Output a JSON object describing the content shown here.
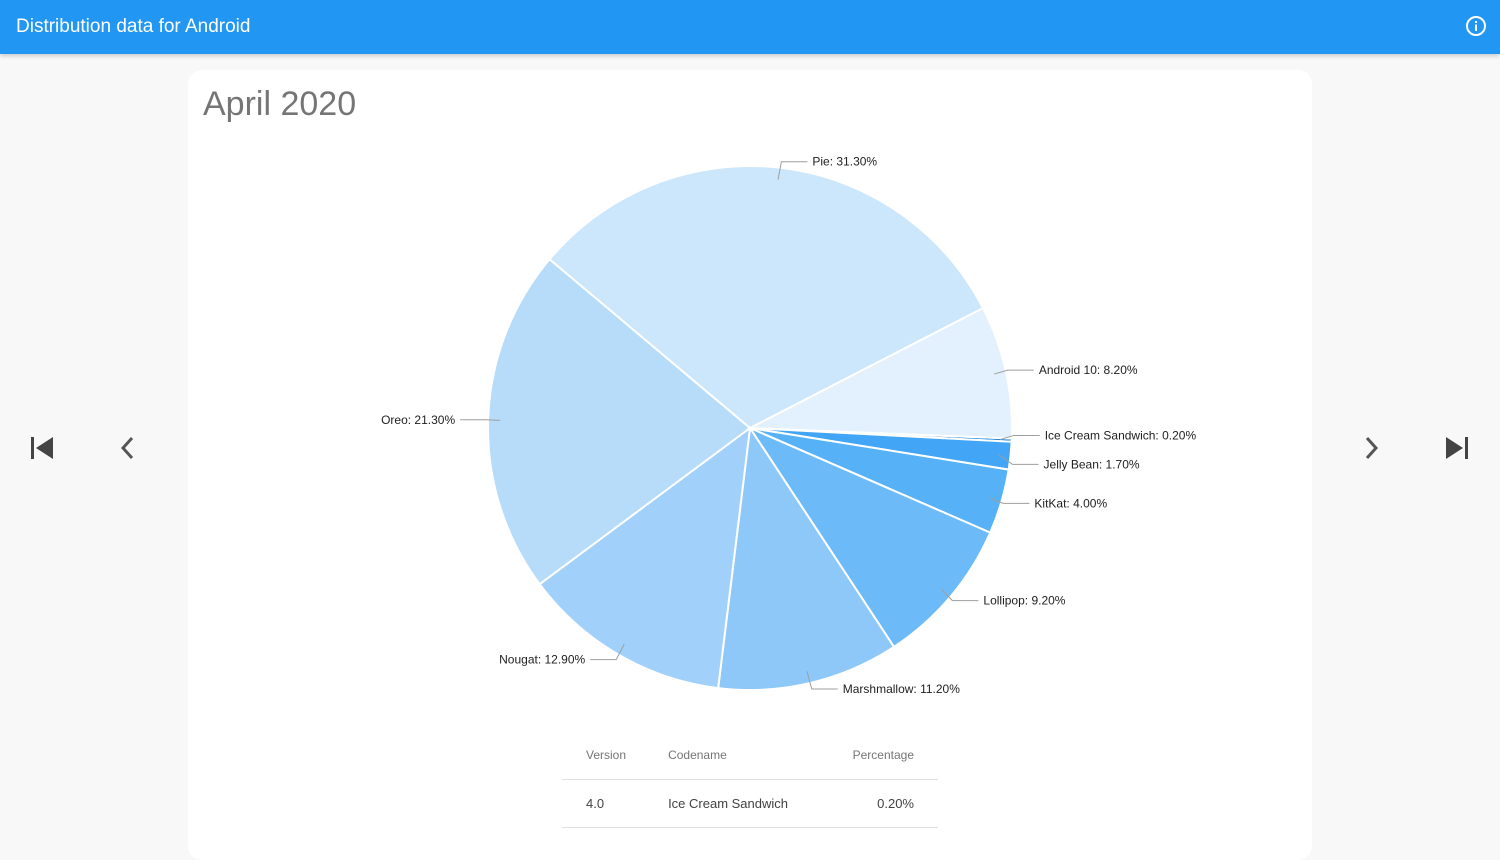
{
  "app": {
    "title": "Distribution data for Android"
  },
  "icons": {
    "info": "info-circle-icon",
    "first": "skip-first-icon",
    "prev": "chevron-left-icon",
    "next": "chevron-right-icon",
    "last": "skip-last-icon"
  },
  "colors": {
    "appbar": "#2196f3",
    "background": "#f7f8f7"
  },
  "card": {
    "title": "April 2020"
  },
  "chart_data": {
    "type": "pie",
    "title": "April 2020",
    "slices": [
      {
        "label": "Ice Cream Sandwich",
        "value": 0.2,
        "display": "Ice Cream Sandwich: 0.20%",
        "color": "#1e88e5"
      },
      {
        "label": "Jelly Bean",
        "value": 1.7,
        "display": "Jelly Bean: 1.70%",
        "color": "#42a5f5"
      },
      {
        "label": "KitKat",
        "value": 4.0,
        "display": "KitKat: 4.00%",
        "color": "#56b1f7"
      },
      {
        "label": "Lollipop",
        "value": 9.2,
        "display": "Lollipop: 9.20%",
        "color": "#6cbaf7"
      },
      {
        "label": "Marshmallow",
        "value": 11.2,
        "display": "Marshmallow: 11.20%",
        "color": "#8ec8f9"
      },
      {
        "label": "Nougat",
        "value": 12.9,
        "display": "Nougat: 12.90%",
        "color": "#a1d0fa"
      },
      {
        "label": "Oreo",
        "value": 21.3,
        "display": "Oreo: 21.30%",
        "color": "#b6dcfa"
      },
      {
        "label": "Pie",
        "value": 31.3,
        "display": "Pie: 31.30%",
        "color": "#cce6fb"
      },
      {
        "label": "Android 10",
        "value": 8.2,
        "display": "Android 10: 8.20%",
        "color": "#e3f0fd"
      }
    ]
  },
  "table": {
    "headers": {
      "version": "Version",
      "codename": "Codename",
      "percentage": "Percentage"
    },
    "rows": [
      {
        "version": "4.0",
        "codename": "Ice Cream Sandwich",
        "percentage": "0.20%"
      }
    ]
  }
}
